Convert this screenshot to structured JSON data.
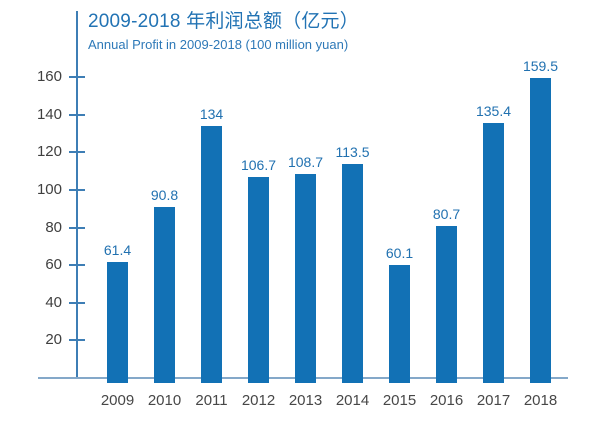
{
  "chart_data": {
    "type": "bar",
    "title": "2009-2018 年利润总额（亿元）",
    "subtitle": "Annual Profit in 2009-2018 (100 million yuan)",
    "categories": [
      "2009",
      "2010",
      "2011",
      "2012",
      "2013",
      "2014",
      "2015",
      "2016",
      "2017",
      "2018"
    ],
    "values": [
      61.4,
      90.8,
      134,
      106.7,
      108.7,
      113.5,
      60.1,
      80.7,
      135.4,
      159.5
    ],
    "data_labels": [
      "61.4",
      "90.8",
      "134",
      "106.7",
      "108.7",
      "113.5",
      "60.1",
      "80.7",
      "135.4",
      "159.5"
    ],
    "y_ticks": [
      20,
      40,
      60,
      80,
      100,
      120,
      140,
      160
    ],
    "ylim": [
      0,
      160
    ],
    "xlabel": "",
    "ylabel": "",
    "grid": false,
    "legend": false,
    "data_labels_shown": true,
    "colors": {
      "bar": "#1271b5",
      "axis": "#3e7eb5",
      "baseline": "#84a8c9",
      "title": "#2273b4",
      "subtitle": "#2e79b8",
      "data_label": "#2171b0",
      "tick_label": "#3f3f3f",
      "category_label": "#474747"
    }
  }
}
